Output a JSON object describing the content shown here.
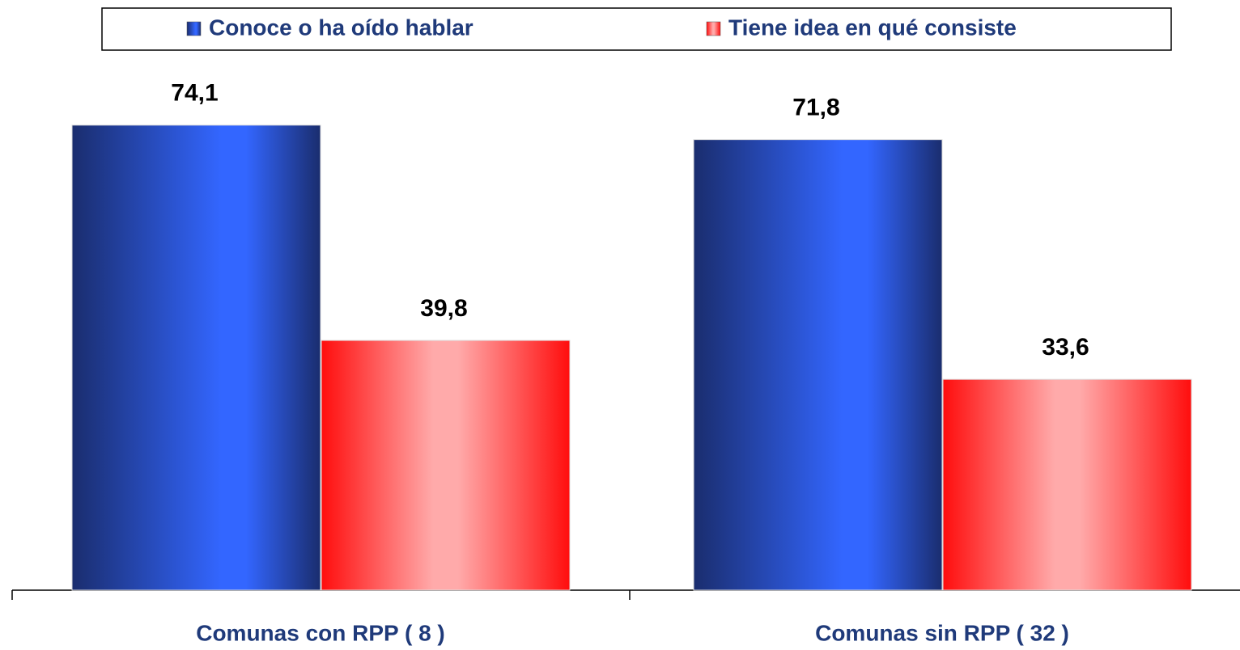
{
  "chart_data": {
    "type": "bar",
    "categories": [
      "Comunas con RPP ( 8 )",
      "Comunas sin RPP ( 32 )"
    ],
    "series": [
      {
        "name": "Conoce o ha oído hablar",
        "color": "#3366ff",
        "values": [
          74.1,
          71.8
        ],
        "value_labels": [
          "74,1",
          "71,8"
        ]
      },
      {
        "name": "Tiene idea en qué consiste",
        "color": "#ff1a1a",
        "values": [
          39.8,
          33.6
        ],
        "value_labels": [
          "39,8",
          "33,6"
        ]
      }
    ],
    "ylim": [
      0,
      80
    ],
    "legend": "top"
  }
}
